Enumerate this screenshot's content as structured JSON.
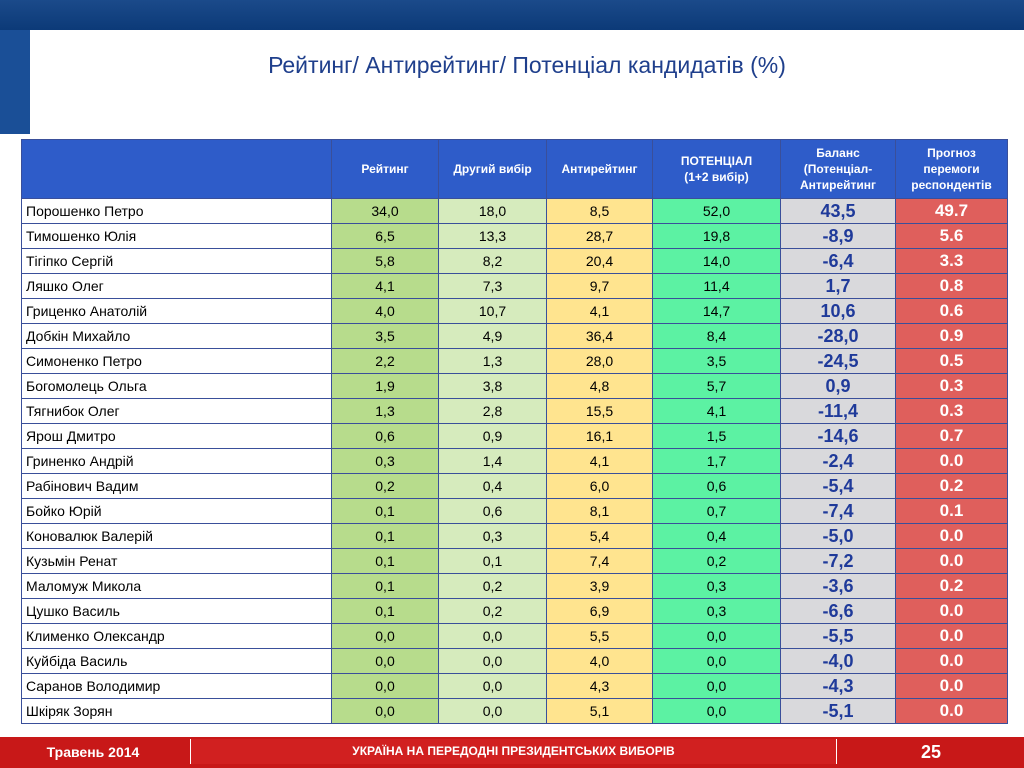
{
  "title": "Рейтинг/ Антирейтинг/ Потенціал кандидатів (%)",
  "table": {
    "headers": [
      "",
      "Рейтинг",
      "Другий вибір",
      "Антирейтинг",
      "ПОТЕНЦІАЛ\n(1+2 вибір)",
      "Баланс\n(Потенціал-\nАнтирейтинг",
      "Прогноз\nперемоги\nреспондентів"
    ],
    "rows": [
      [
        "Порошенко Петро",
        "34,0",
        "18,0",
        "8,5",
        "52,0",
        "43,5",
        "49.7"
      ],
      [
        "Тимошенко Юлія",
        "6,5",
        "13,3",
        "28,7",
        "19,8",
        "-8,9",
        "5.6"
      ],
      [
        "Тігіпко Сергій",
        "5,8",
        "8,2",
        "20,4",
        "14,0",
        "-6,4",
        "3.3"
      ],
      [
        "Ляшко Олег",
        "4,1",
        "7,3",
        "9,7",
        "11,4",
        "1,7",
        "0.8"
      ],
      [
        "Гриценко Анатолій",
        "4,0",
        "10,7",
        "4,1",
        "14,7",
        "10,6",
        "0.6"
      ],
      [
        "Добкін Михайло",
        "3,5",
        "4,9",
        "36,4",
        "8,4",
        "-28,0",
        "0.9"
      ],
      [
        "Симоненко Петро",
        "2,2",
        "1,3",
        "28,0",
        "3,5",
        "-24,5",
        "0.5"
      ],
      [
        "Богомолець Ольга",
        "1,9",
        "3,8",
        "4,8",
        "5,7",
        "0,9",
        "0.3"
      ],
      [
        "Тягнибок Олег",
        "1,3",
        "2,8",
        "15,5",
        "4,1",
        "-11,4",
        "0.3"
      ],
      [
        "Ярош Дмитро",
        "0,6",
        "0,9",
        "16,1",
        "1,5",
        "-14,6",
        "0.7"
      ],
      [
        "Гриненко Андрій",
        "0,3",
        "1,4",
        "4,1",
        "1,7",
        "-2,4",
        "0.0"
      ],
      [
        "Рабінович Вадим",
        "0,2",
        "0,4",
        "6,0",
        "0,6",
        "-5,4",
        "0.2"
      ],
      [
        "Бойко Юрій",
        "0,1",
        "0,6",
        "8,1",
        "0,7",
        "-7,4",
        "0.1"
      ],
      [
        "Коновалюк Валерій",
        "0,1",
        "0,3",
        "5,4",
        "0,4",
        "-5,0",
        "0.0"
      ],
      [
        "Кузьмін Ренат",
        "0,1",
        "0,1",
        "7,4",
        "0,2",
        "-7,2",
        "0.0"
      ],
      [
        "Маломуж Микола",
        "0,1",
        "0,2",
        "3,9",
        "0,3",
        "-3,6",
        "0.2"
      ],
      [
        "Цушко Василь",
        "0,1",
        "0,2",
        "6,9",
        "0,3",
        "-6,6",
        "0.0"
      ],
      [
        "Клименко Олександр",
        "0,0",
        "0,0",
        "5,5",
        "0,0",
        "-5,5",
        "0.0"
      ],
      [
        "Куйбіда Василь",
        "0,0",
        "0,0",
        "4,0",
        "0,0",
        "-4,0",
        "0.0"
      ],
      [
        "Саранов Володимир",
        "0,0",
        "0,0",
        "4,3",
        "0,0",
        "-4,3",
        "0.0"
      ],
      [
        "Шкіряк Зорян",
        "0,0",
        "0,0",
        "5,1",
        "0,0",
        "-5,1",
        "0.0"
      ]
    ]
  },
  "footer": {
    "date": "Травень 2014",
    "caption": "УКРАЇНА НА ПЕРЕДОДНІ ПРЕЗИДЕНТСЬКИХ ВИБОРІВ",
    "page_number": "25"
  },
  "colors": {
    "header_blue": "#2e5cc9",
    "rating_green": "#b7dc8c",
    "second_choice_green": "#d6ebbd",
    "antirating_yellow": "#ffe48f",
    "potential_green": "#5cf2a3",
    "balance_gray": "#d9d9dc",
    "forecast_red": "#df5f5c",
    "footer_red": "#c81818"
  }
}
